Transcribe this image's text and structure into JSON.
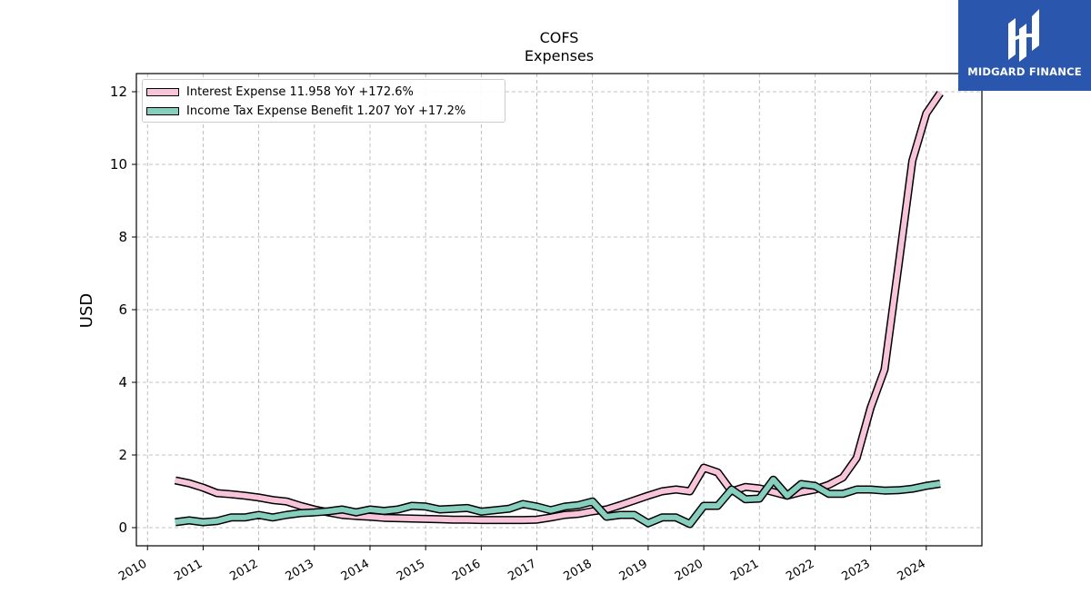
{
  "chart_data": {
    "type": "line",
    "title": "COFS",
    "subtitle": "Expenses",
    "ylabel": "USD",
    "xlabel": "",
    "xlim": [
      2009.8,
      2025.0
    ],
    "ylim": [
      -0.5,
      12.5
    ],
    "yticks": [
      0,
      2,
      4,
      6,
      8,
      10,
      12
    ],
    "xticks": [
      "2010",
      "2011",
      "2012",
      "2013",
      "2014",
      "2015",
      "2016",
      "2017",
      "2018",
      "2019",
      "2020",
      "2021",
      "2022",
      "2023",
      "2024"
    ],
    "grid": true,
    "legend_position": "upper-left",
    "series": [
      {
        "name": "Interest Expense",
        "legend_label": "Interest Expense  11.958 YoY +172.6%",
        "color": "#f7c4da",
        "x": [
          2010.5,
          2010.75,
          2011.0,
          2011.25,
          2011.5,
          2011.75,
          2012.0,
          2012.25,
          2012.5,
          2012.75,
          2013.0,
          2013.25,
          2013.5,
          2013.75,
          2014.0,
          2014.25,
          2014.5,
          2014.75,
          2015.0,
          2015.25,
          2015.5,
          2015.75,
          2016.0,
          2016.25,
          2016.5,
          2016.75,
          2017.0,
          2017.25,
          2017.5,
          2017.75,
          2018.0,
          2018.25,
          2018.5,
          2018.75,
          2019.0,
          2019.25,
          2019.5,
          2019.75,
          2020.0,
          2020.25,
          2020.5,
          2020.75,
          2021.0,
          2021.25,
          2021.5,
          2021.75,
          2022.0,
          2022.25,
          2022.5,
          2022.75,
          2023.0,
          2023.25,
          2023.5,
          2023.75,
          2024.0,
          2024.25
        ],
        "values": [
          1.3,
          1.22,
          1.1,
          0.95,
          0.92,
          0.88,
          0.83,
          0.76,
          0.72,
          0.6,
          0.5,
          0.42,
          0.35,
          0.32,
          0.3,
          0.27,
          0.26,
          0.25,
          0.24,
          0.23,
          0.22,
          0.22,
          0.21,
          0.21,
          0.21,
          0.21,
          0.22,
          0.28,
          0.35,
          0.38,
          0.45,
          0.5,
          0.62,
          0.75,
          0.88,
          1.0,
          1.05,
          1.0,
          1.65,
          1.52,
          1.0,
          1.12,
          1.08,
          0.98,
          0.88,
          0.98,
          1.05,
          1.18,
          1.38,
          1.92,
          3.3,
          4.35,
          7.2,
          10.1,
          11.4,
          11.96
        ]
      },
      {
        "name": "Income Tax Expense Benefit",
        "legend_label": "Income Tax Expense Benefit  1.207 YoY +17.2%",
        "color": "#86cfbf",
        "x": [
          2010.5,
          2010.75,
          2011.0,
          2011.25,
          2011.5,
          2011.75,
          2012.0,
          2012.25,
          2012.5,
          2012.75,
          2013.0,
          2013.25,
          2013.5,
          2013.75,
          2014.0,
          2014.25,
          2014.5,
          2014.75,
          2015.0,
          2015.25,
          2015.5,
          2015.75,
          2016.0,
          2016.25,
          2016.5,
          2016.75,
          2017.0,
          2017.25,
          2017.5,
          2017.75,
          2018.0,
          2018.25,
          2018.5,
          2018.75,
          2019.0,
          2019.25,
          2019.5,
          2019.75,
          2020.0,
          2020.25,
          2020.5,
          2020.75,
          2021.0,
          2021.25,
          2021.5,
          2021.75,
          2022.0,
          2022.25,
          2022.5,
          2022.75,
          2023.0,
          2023.25,
          2023.5,
          2023.75,
          2024.0,
          2024.25
        ],
        "values": [
          0.15,
          0.2,
          0.15,
          0.18,
          0.28,
          0.28,
          0.35,
          0.28,
          0.35,
          0.4,
          0.42,
          0.45,
          0.5,
          0.42,
          0.5,
          0.46,
          0.5,
          0.6,
          0.58,
          0.5,
          0.52,
          0.54,
          0.44,
          0.48,
          0.52,
          0.65,
          0.58,
          0.48,
          0.58,
          0.62,
          0.72,
          0.3,
          0.35,
          0.35,
          0.12,
          0.28,
          0.28,
          0.1,
          0.6,
          0.6,
          1.05,
          0.78,
          0.8,
          1.32,
          0.88,
          1.2,
          1.15,
          0.93,
          0.93,
          1.05,
          1.05,
          1.02,
          1.03,
          1.07,
          1.15,
          1.207
        ]
      }
    ]
  },
  "logo": {
    "text": "MIDGARD FINANCE",
    "icon": "midgard-finance-logo-icon",
    "background": "#2a57ad"
  }
}
